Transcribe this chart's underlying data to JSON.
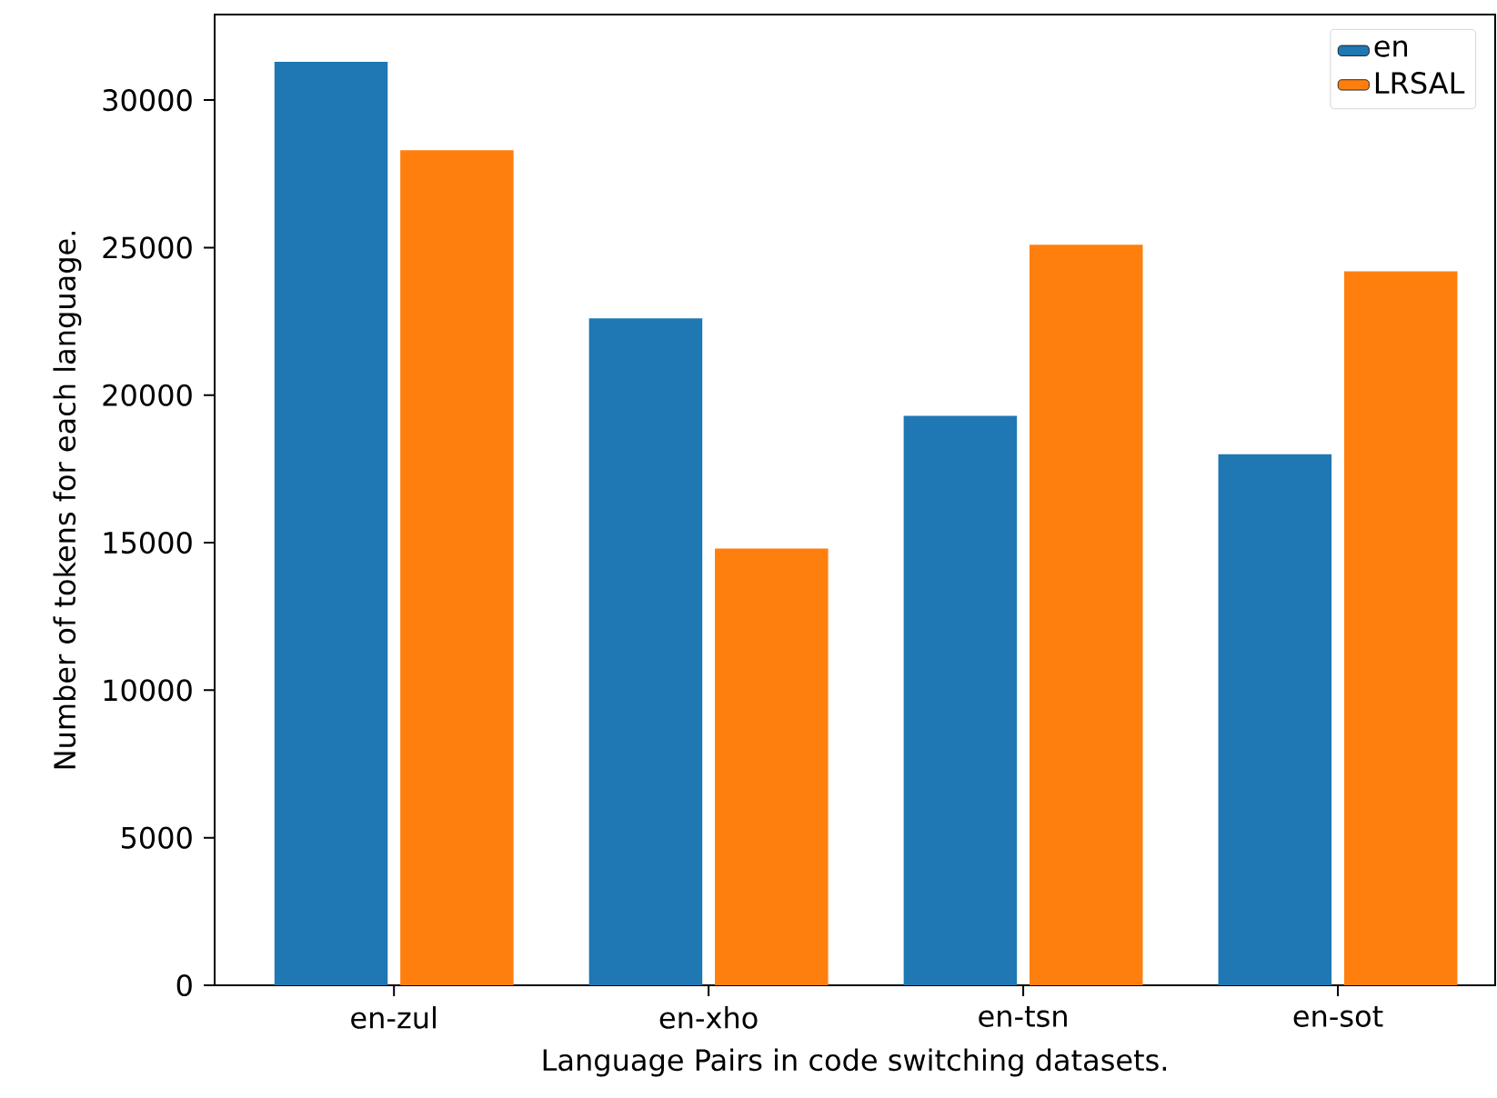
{
  "chart_data": {
    "type": "bar",
    "xlabel": "Language Pairs in code switching datasets.",
    "ylabel": "Number of tokens for each language.",
    "categories": [
      "en-zul",
      "en-xho",
      "en-tsn",
      "en-sot"
    ],
    "series": [
      {
        "name": "en",
        "color": "#1f77b4",
        "values": [
          31300,
          22600,
          19300,
          18000
        ]
      },
      {
        "name": "LRSAL",
        "color": "#ff7f0e",
        "values": [
          28300,
          14800,
          25100,
          24200
        ]
      }
    ],
    "ylim": [
      0,
      32900
    ],
    "yticks": [
      0,
      5000,
      10000,
      15000,
      20000,
      25000,
      30000
    ],
    "grid": false,
    "legend": "top right"
  }
}
